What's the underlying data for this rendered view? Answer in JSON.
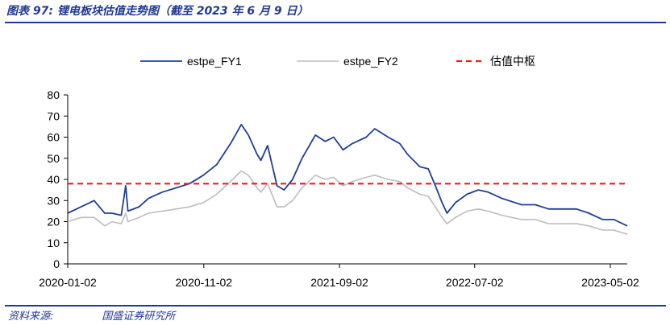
{
  "header": {
    "figure_title": "图表 97:  锂电板块估值走势图（截至 2023 年 6 月 9 日）"
  },
  "footer": {
    "source_label": "资料来源:",
    "source_org": "国盛证券研究所"
  },
  "colors": {
    "fy1": "#1f3f93",
    "fy2": "#bdbdbd",
    "median": "#e8201f",
    "rule": "#1f3a93"
  },
  "chart_data": {
    "type": "line",
    "title": "",
    "xlabel": "",
    "ylabel": "",
    "ylim": [
      0,
      80
    ],
    "yticks": [
      0,
      10,
      20,
      30,
      40,
      50,
      60,
      70,
      80
    ],
    "xticks": [
      "2020-01-02",
      "2020-11-02",
      "2021-09-02",
      "2022-07-02",
      "2023-05-02"
    ],
    "xrange": [
      "2020-01-02",
      "2023-06-09"
    ],
    "legend_position": "top",
    "series": [
      {
        "name": "estpe_FY1",
        "style": "solid",
        "points": [
          [
            "2020-01-02",
            24
          ],
          [
            "2020-02-01",
            27
          ],
          [
            "2020-03-01",
            30
          ],
          [
            "2020-03-25",
            24
          ],
          [
            "2020-04-10",
            24
          ],
          [
            "2020-05-01",
            23
          ],
          [
            "2020-05-11",
            37
          ],
          [
            "2020-05-16",
            25
          ],
          [
            "2020-06-10",
            27
          ],
          [
            "2020-07-01",
            31
          ],
          [
            "2020-08-01",
            34
          ],
          [
            "2020-09-01",
            36
          ],
          [
            "2020-10-01",
            38
          ],
          [
            "2020-11-01",
            42
          ],
          [
            "2020-12-01",
            47
          ],
          [
            "2021-01-01",
            57
          ],
          [
            "2021-01-25",
            66
          ],
          [
            "2021-02-10",
            61
          ],
          [
            "2021-03-01",
            52
          ],
          [
            "2021-03-10",
            49
          ],
          [
            "2021-03-25",
            56
          ],
          [
            "2021-04-15",
            37
          ],
          [
            "2021-05-01",
            35
          ],
          [
            "2021-05-20",
            40
          ],
          [
            "2021-06-10",
            50
          ],
          [
            "2021-07-10",
            61
          ],
          [
            "2021-08-01",
            58
          ],
          [
            "2021-08-20",
            60
          ],
          [
            "2021-09-10",
            54
          ],
          [
            "2021-10-01",
            57
          ],
          [
            "2021-11-01",
            60
          ],
          [
            "2021-11-20",
            64
          ],
          [
            "2021-12-20",
            60
          ],
          [
            "2022-01-15",
            57
          ],
          [
            "2022-02-01",
            52
          ],
          [
            "2022-03-01",
            46
          ],
          [
            "2022-03-20",
            45
          ],
          [
            "2022-04-05",
            37
          ],
          [
            "2022-04-20",
            29
          ],
          [
            "2022-05-01",
            24
          ],
          [
            "2022-05-20",
            29
          ],
          [
            "2022-06-15",
            33
          ],
          [
            "2022-07-10",
            35
          ],
          [
            "2022-08-01",
            34
          ],
          [
            "2022-09-01",
            31
          ],
          [
            "2022-10-15",
            28
          ],
          [
            "2022-11-15",
            28
          ],
          [
            "2022-12-15",
            26
          ],
          [
            "2023-01-15",
            26
          ],
          [
            "2023-02-15",
            26
          ],
          [
            "2023-03-15",
            24
          ],
          [
            "2023-04-15",
            21
          ],
          [
            "2023-05-10",
            21
          ],
          [
            "2023-06-09",
            18
          ]
        ]
      },
      {
        "name": "estpe_FY2",
        "style": "solid",
        "points": [
          [
            "2020-01-02",
            20
          ],
          [
            "2020-02-01",
            22
          ],
          [
            "2020-03-01",
            22
          ],
          [
            "2020-03-25",
            18
          ],
          [
            "2020-04-10",
            20
          ],
          [
            "2020-05-01",
            19
          ],
          [
            "2020-05-11",
            24
          ],
          [
            "2020-05-16",
            20
          ],
          [
            "2020-06-10",
            22
          ],
          [
            "2020-07-01",
            24
          ],
          [
            "2020-08-01",
            25
          ],
          [
            "2020-09-01",
            26
          ],
          [
            "2020-10-01",
            27
          ],
          [
            "2020-11-01",
            29
          ],
          [
            "2020-12-01",
            33
          ],
          [
            "2021-01-01",
            39
          ],
          [
            "2021-01-25",
            44
          ],
          [
            "2021-02-10",
            42
          ],
          [
            "2021-03-01",
            36
          ],
          [
            "2021-03-10",
            34
          ],
          [
            "2021-03-25",
            38
          ],
          [
            "2021-04-15",
            27
          ],
          [
            "2021-05-01",
            27
          ],
          [
            "2021-05-20",
            30
          ],
          [
            "2021-06-10",
            36
          ],
          [
            "2021-07-10",
            42
          ],
          [
            "2021-08-01",
            40
          ],
          [
            "2021-08-20",
            41
          ],
          [
            "2021-09-10",
            37
          ],
          [
            "2021-10-01",
            39
          ],
          [
            "2021-11-01",
            41
          ],
          [
            "2021-11-20",
            42
          ],
          [
            "2021-12-20",
            40
          ],
          [
            "2022-01-15",
            39
          ],
          [
            "2022-02-01",
            36
          ],
          [
            "2022-03-01",
            33
          ],
          [
            "2022-03-20",
            32
          ],
          [
            "2022-04-05",
            27
          ],
          [
            "2022-04-20",
            22
          ],
          [
            "2022-05-01",
            19
          ],
          [
            "2022-05-20",
            22
          ],
          [
            "2022-06-15",
            25
          ],
          [
            "2022-07-10",
            26
          ],
          [
            "2022-08-01",
            25
          ],
          [
            "2022-09-01",
            23
          ],
          [
            "2022-10-15",
            21
          ],
          [
            "2022-11-15",
            21
          ],
          [
            "2022-12-15",
            19
          ],
          [
            "2023-01-15",
            19
          ],
          [
            "2023-02-15",
            19
          ],
          [
            "2023-03-15",
            18
          ],
          [
            "2023-04-15",
            16
          ],
          [
            "2023-05-10",
            16
          ],
          [
            "2023-06-09",
            14
          ]
        ]
      },
      {
        "name": "估值中枢",
        "style": "dashed",
        "points": [
          [
            "2020-01-02",
            38
          ],
          [
            "2023-06-09",
            38
          ]
        ]
      }
    ]
  }
}
